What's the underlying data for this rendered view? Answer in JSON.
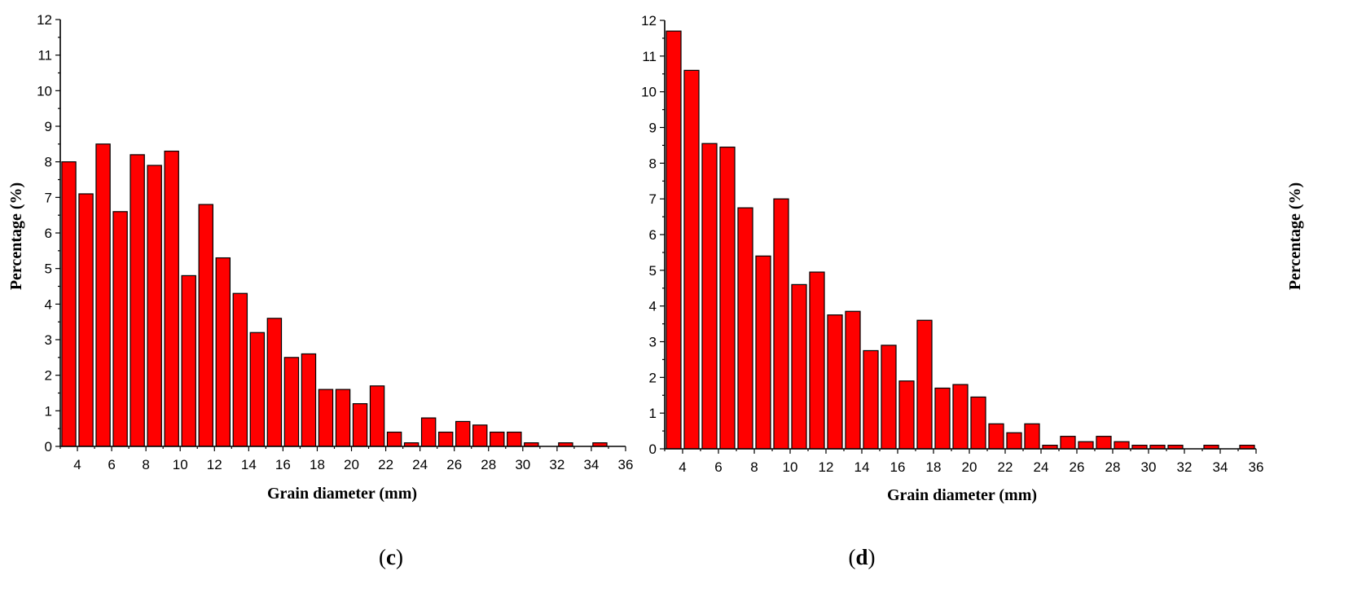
{
  "chart_data": [
    {
      "type": "bar",
      "panel_label": "c",
      "xlabel": "Grain diameter (mm)",
      "ylabel": "Percentage (%)",
      "x": [
        3.5,
        4.5,
        5.5,
        6.5,
        7.5,
        8.5,
        9.5,
        10.5,
        11.5,
        12.5,
        13.5,
        14.5,
        15.5,
        16.5,
        17.5,
        18.5,
        19.5,
        20.5,
        21.5,
        22.5,
        23.5,
        24.5,
        25.5,
        26.5,
        27.5,
        28.5,
        29.5,
        30.5,
        31.5,
        32.5,
        33.5,
        34.5,
        35.5
      ],
      "values": [
        8.0,
        7.1,
        8.5,
        6.6,
        8.2,
        7.9,
        8.3,
        4.8,
        6.8,
        5.3,
        4.3,
        3.2,
        3.6,
        2.5,
        2.6,
        1.6,
        1.6,
        1.2,
        1.7,
        0.4,
        0.1,
        0.8,
        0.4,
        0.7,
        0.6,
        0.4,
        0.4,
        0.1,
        0.0,
        0.1,
        0.0,
        0.1,
        0.0
      ],
      "xlim": [
        3,
        36
      ],
      "ylim": [
        0,
        12
      ],
      "xticks": [
        4,
        6,
        8,
        10,
        12,
        14,
        16,
        18,
        20,
        22,
        24,
        26,
        28,
        30,
        32,
        34,
        36
      ],
      "yticks": [
        0,
        1,
        2,
        3,
        4,
        5,
        6,
        7,
        8,
        9,
        10,
        11,
        12
      ],
      "bar_color": "#ff0000"
    },
    {
      "type": "bar",
      "panel_label": "d",
      "xlabel": "Grain diameter (mm)",
      "ylabel": "Percentage (%)",
      "x": [
        3.5,
        4.5,
        5.5,
        6.5,
        7.5,
        8.5,
        9.5,
        10.5,
        11.5,
        12.5,
        13.5,
        14.5,
        15.5,
        16.5,
        17.5,
        18.5,
        19.5,
        20.5,
        21.5,
        22.5,
        23.5,
        24.5,
        25.5,
        26.5,
        27.5,
        28.5,
        29.5,
        30.5,
        31.5,
        32.5,
        33.5,
        34.5,
        35.5
      ],
      "values": [
        11.7,
        10.6,
        8.55,
        8.45,
        6.75,
        5.4,
        7.0,
        4.6,
        4.95,
        3.75,
        3.85,
        2.75,
        2.9,
        1.9,
        3.6,
        1.7,
        1.8,
        1.45,
        0.7,
        0.45,
        0.7,
        0.1,
        0.35,
        0.2,
        0.35,
        0.2,
        0.1,
        0.1,
        0.1,
        0.0,
        0.1,
        0.0,
        0.1
      ],
      "xlim": [
        3,
        36
      ],
      "ylim": [
        0,
        12
      ],
      "xticks": [
        4,
        6,
        8,
        10,
        12,
        14,
        16,
        18,
        20,
        22,
        24,
        26,
        28,
        30,
        32,
        34,
        36
      ],
      "yticks": [
        0,
        1,
        2,
        3,
        4,
        5,
        6,
        7,
        8,
        9,
        10,
        11,
        12
      ],
      "bar_color": "#ff0000"
    }
  ],
  "captions": {
    "c": {
      "open": "(",
      "letter": "c",
      "close": ")"
    },
    "d": {
      "open": "(",
      "letter": "d",
      "close": ")"
    }
  }
}
